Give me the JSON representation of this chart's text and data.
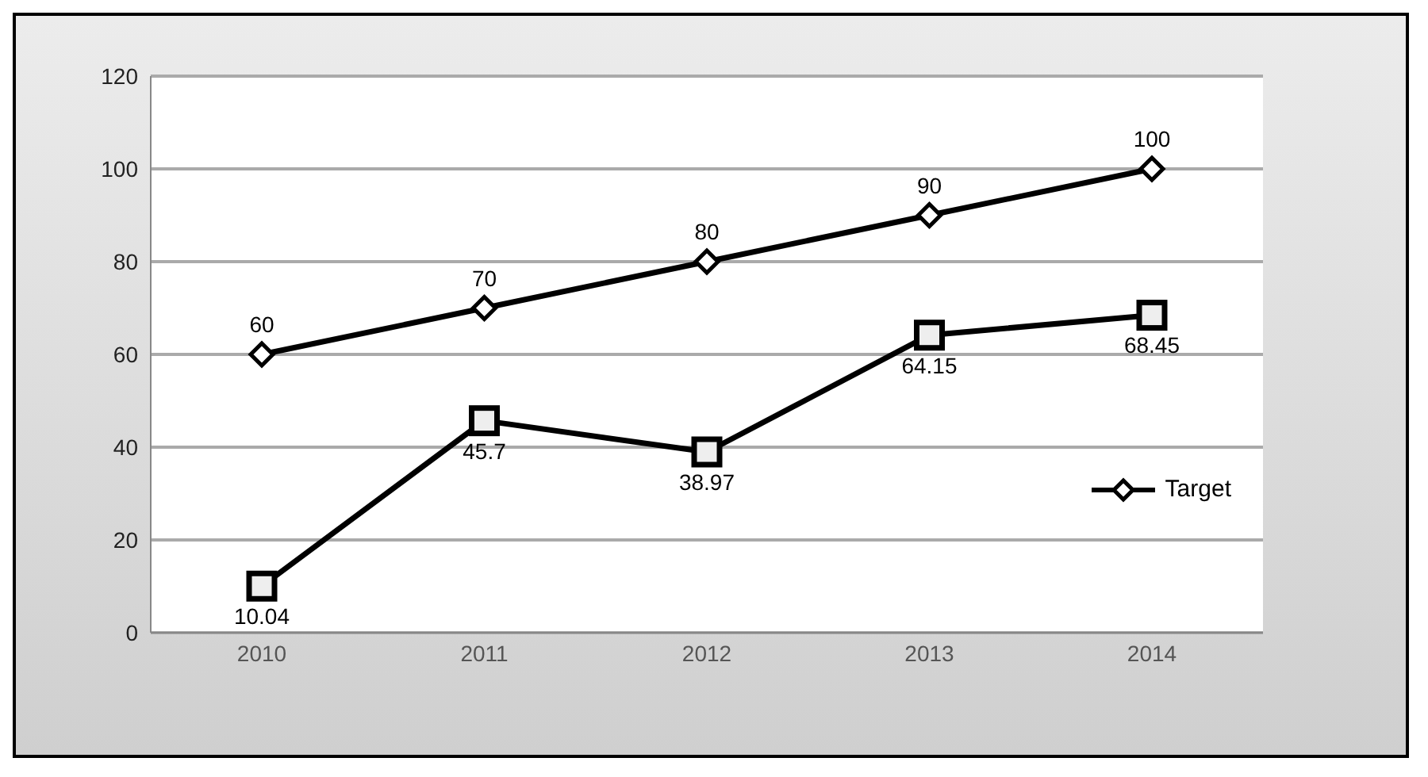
{
  "chart_data": {
    "type": "line",
    "categories": [
      "2010",
      "2011",
      "2012",
      "2013",
      "2014"
    ],
    "series": [
      {
        "name": "Target",
        "color": "#000000",
        "marker": "diamond",
        "values": [
          60,
          70,
          80,
          90,
          100
        ]
      },
      {
        "color": "#000000",
        "marker": "square",
        "values": [
          10.04,
          45.7,
          38.97,
          64.15,
          68.45
        ]
      }
    ],
    "ylim": [
      0,
      120
    ],
    "yticks": [
      0,
      20,
      40,
      60,
      80,
      100,
      120
    ],
    "grid": "y",
    "legend": "right",
    "data_labels": true
  }
}
